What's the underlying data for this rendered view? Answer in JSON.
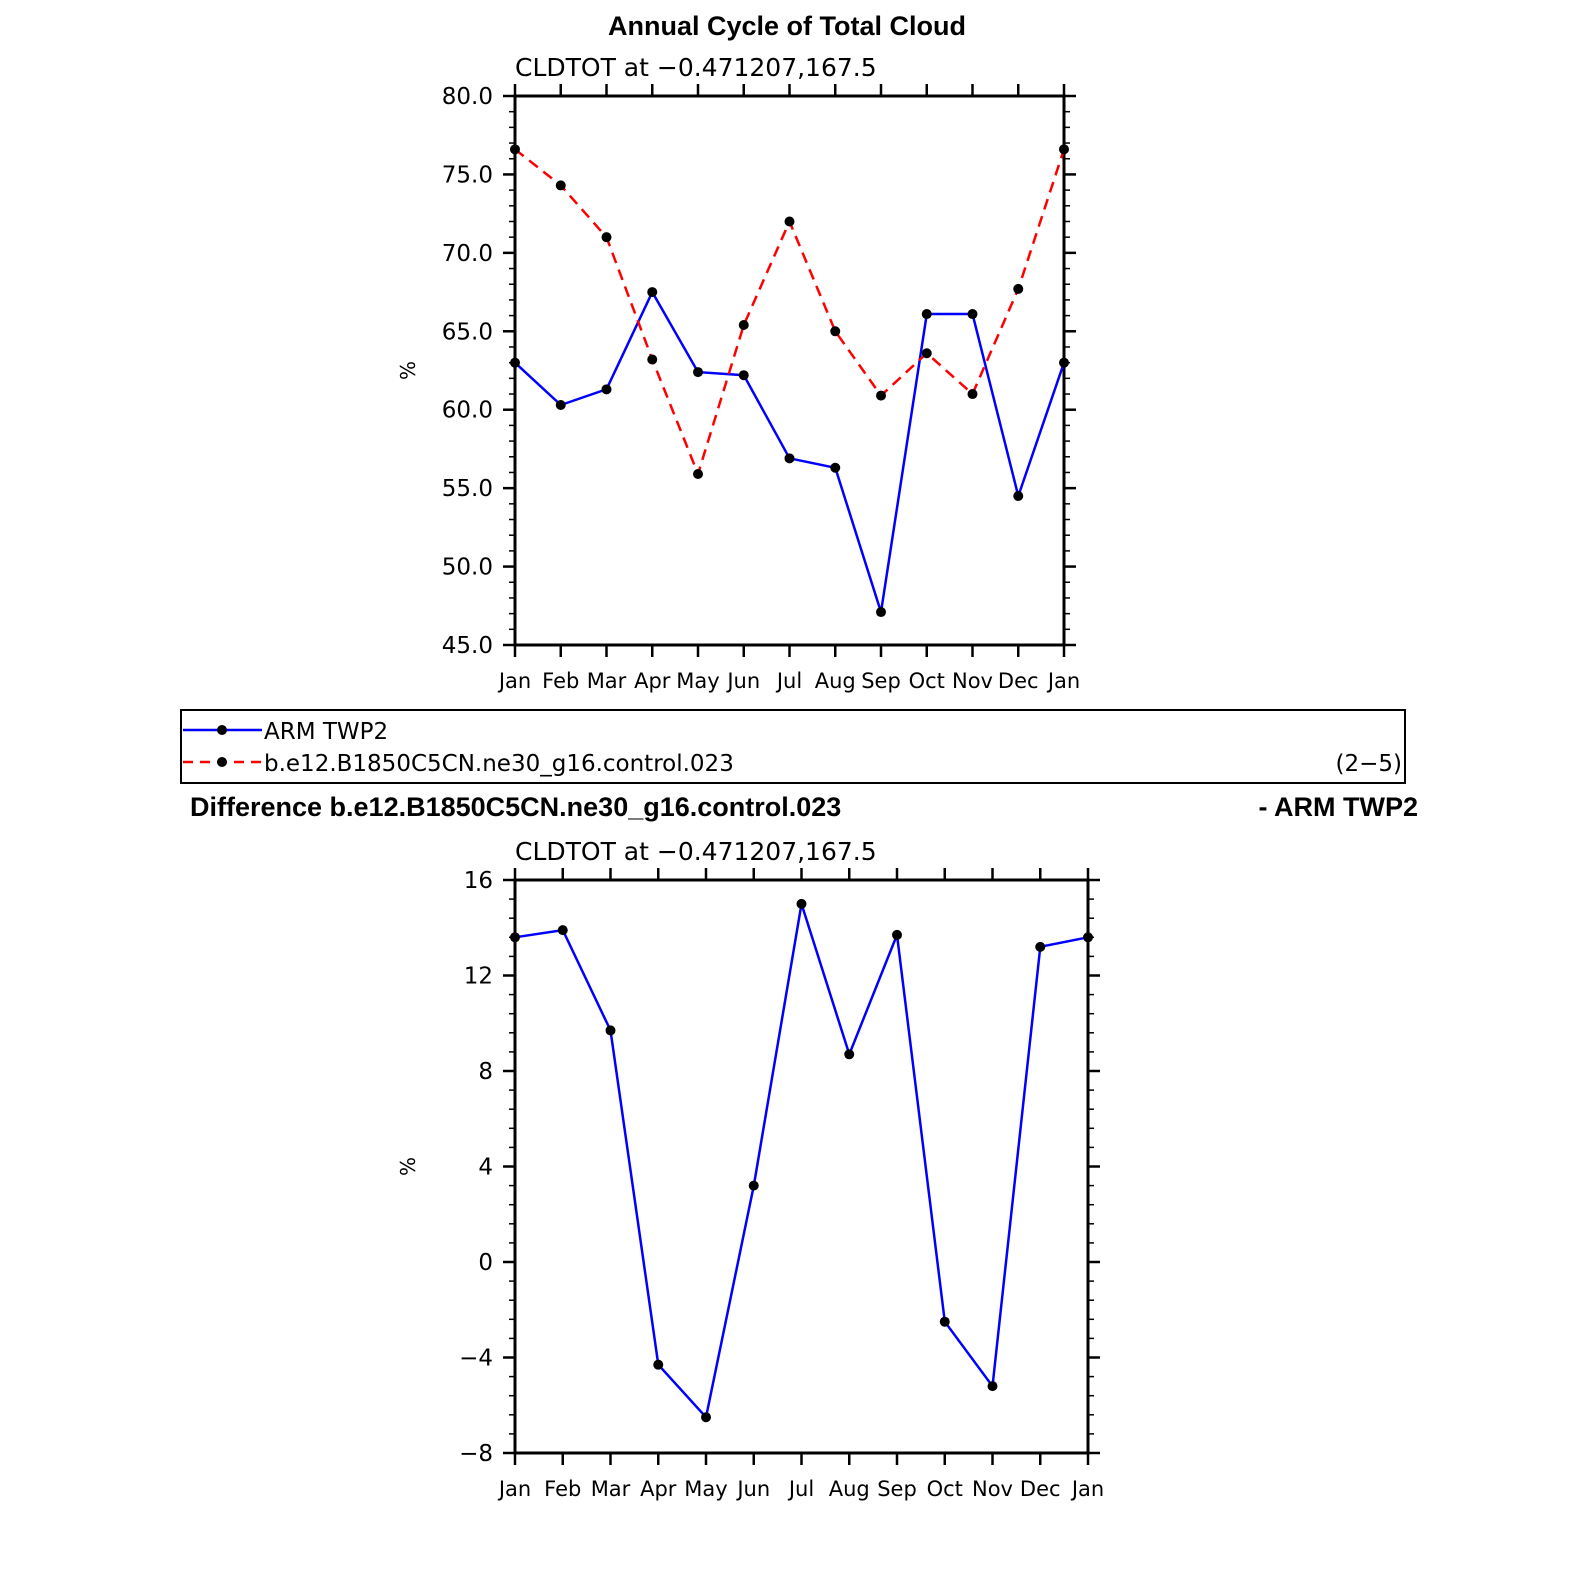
{
  "top_title": "Annual Cycle of Total Cloud",
  "legend": {
    "entries": [
      "ARM TWP2",
      "b.e12.B1850C5CN.ne30_g16.control.023"
    ],
    "tag": "(2−5)"
  },
  "bottom_title": {
    "left": "Difference b.e12.B1850C5CN.ne30_g16.control.023",
    "right": "- ARM TWP2"
  },
  "colors": {
    "obs": "#0000ff",
    "model": "#ff0000",
    "marker": "#000000"
  },
  "chart_data": [
    {
      "type": "line",
      "subtitle": "CLDTOT at −0.471207,167.5",
      "ylabel": "%",
      "categories": [
        "Jan",
        "Feb",
        "Mar",
        "Apr",
        "May",
        "Jun",
        "Jul",
        "Aug",
        "Sep",
        "Oct",
        "Nov",
        "Dec",
        "Jan"
      ],
      "ylim": [
        45,
        80
      ],
      "yticks": [
        45,
        50,
        55,
        60,
        65,
        70,
        75,
        80
      ],
      "ytick_labels": [
        "45.0",
        "50.0",
        "55.0",
        "60.0",
        "65.0",
        "70.0",
        "75.0",
        "80.0"
      ],
      "series": [
        {
          "name": "ARM TWP2",
          "style": "solid",
          "color": "#0000ff",
          "values": [
            63.0,
            60.3,
            61.3,
            67.5,
            62.4,
            62.2,
            56.9,
            56.3,
            47.1,
            66.1,
            66.1,
            54.5,
            63.0
          ]
        },
        {
          "name": "b.e12.B1850C5CN.ne30_g16.control.023",
          "style": "dashed",
          "color": "#ff0000",
          "values": [
            76.6,
            74.3,
            71.0,
            63.2,
            55.9,
            65.4,
            72.0,
            65.0,
            60.9,
            63.6,
            61.0,
            67.7,
            76.6
          ]
        }
      ],
      "grid": false
    },
    {
      "type": "line",
      "subtitle": "CLDTOT at −0.471207,167.5",
      "ylabel": "%",
      "categories": [
        "Jan",
        "Feb",
        "Mar",
        "Apr",
        "May",
        "Jun",
        "Jul",
        "Aug",
        "Sep",
        "Oct",
        "Nov",
        "Dec",
        "Jan"
      ],
      "ylim": [
        -8,
        16
      ],
      "yticks": [
        -8,
        -4,
        0,
        4,
        8,
        12,
        16
      ],
      "ytick_labels": [
        "−8",
        "−4",
        "0",
        "4",
        "8",
        "12",
        "16"
      ],
      "series": [
        {
          "style": "solid",
          "color": "#0000ff",
          "values": [
            13.6,
            13.9,
            9.7,
            -4.3,
            -6.5,
            3.2,
            15.0,
            8.7,
            13.7,
            -2.5,
            -5.2,
            13.2,
            13.6
          ]
        }
      ],
      "grid": false
    }
  ]
}
